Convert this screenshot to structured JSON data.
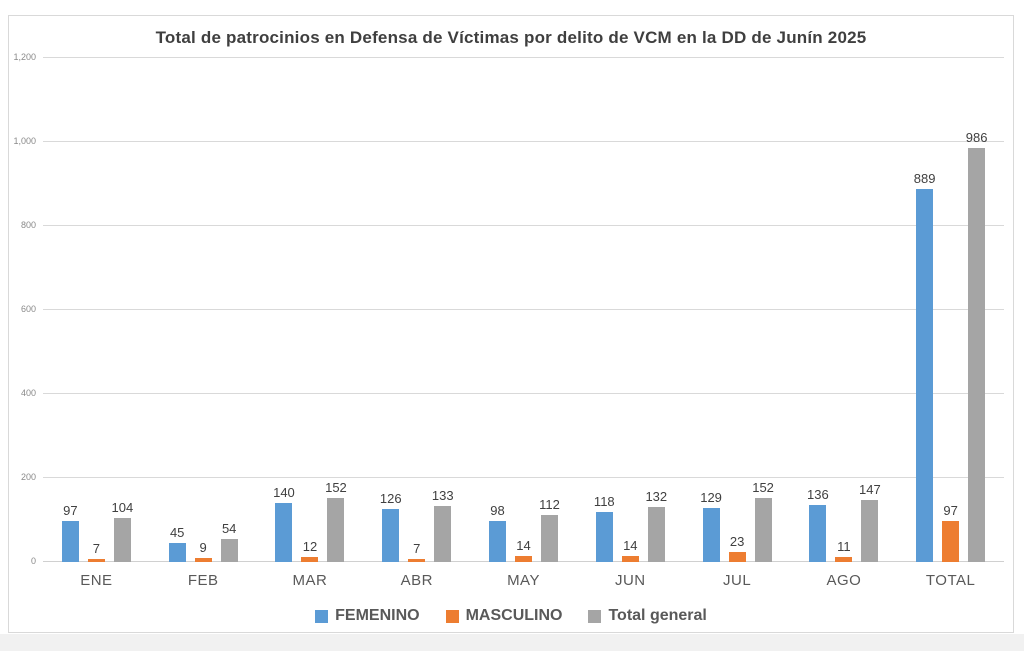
{
  "chart_data": {
    "type": "bar",
    "title": "Total de patrocinios en Defensa de Víctimas por delito de VCM en la DD de Junín 2025",
    "categories": [
      "ENE",
      "FEB",
      "MAR",
      "ABR",
      "MAY",
      "JUN",
      "JUL",
      "AGO",
      "TOTAL"
    ],
    "series": [
      {
        "name": "FEMENINO",
        "color": "#5B9BD5",
        "values": [
          97,
          45,
          140,
          126,
          98,
          118,
          129,
          136,
          889
        ]
      },
      {
        "name": "MASCULINO",
        "color": "#ED7D31",
        "values": [
          7,
          9,
          12,
          7,
          14,
          14,
          23,
          11,
          97
        ]
      },
      {
        "name": "Total general",
        "color": "#A5A5A5",
        "values": [
          104,
          54,
          152,
          133,
          112,
          132,
          152,
          147,
          986
        ]
      }
    ],
    "xlabel": "",
    "ylabel": "",
    "ylim": [
      0,
      1200
    ],
    "ytick_step": 200,
    "ytick_labels": [
      "0",
      "200",
      "400",
      "600",
      "800",
      "1,000",
      "1,200"
    ],
    "grid": true,
    "legend_position": "bottom",
    "data_labels": true
  }
}
